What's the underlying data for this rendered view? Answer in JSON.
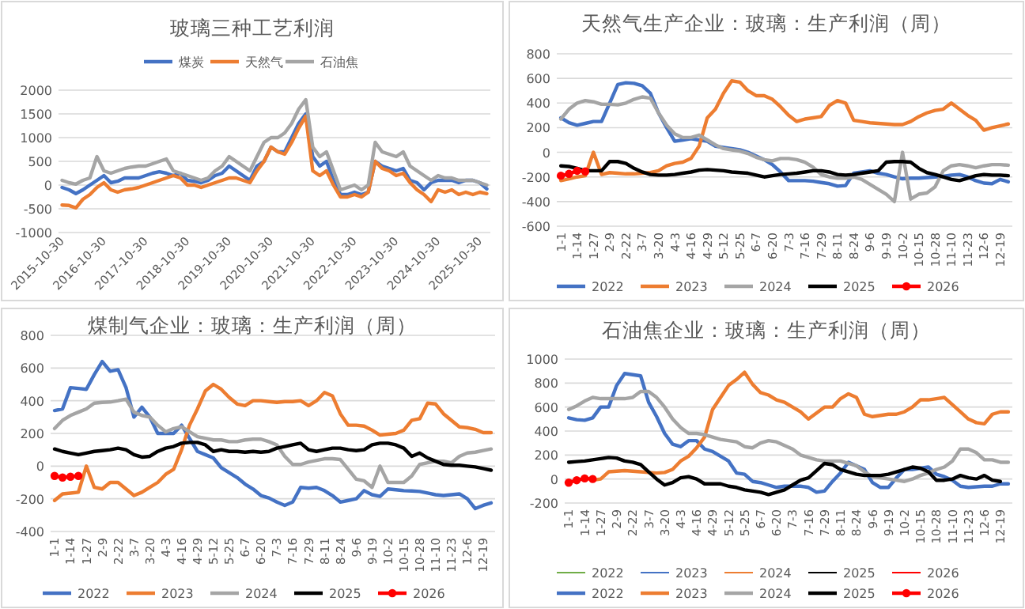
{
  "chart_data": [
    {
      "type": "line",
      "title": "玻璃三种工艺利润",
      "legend": "top",
      "grid": "y",
      "x": [
        "2015-11",
        "2016-01",
        "2016-03",
        "2016-05",
        "2016-07",
        "2016-09",
        "2016-11",
        "2017-01",
        "2017-03",
        "2017-05",
        "2017-07",
        "2017-09",
        "2017-11",
        "2018-01",
        "2018-03",
        "2018-05",
        "2018-07",
        "2018-09",
        "2018-11",
        "2019-01",
        "2019-03",
        "2019-05",
        "2019-07",
        "2019-09",
        "2019-11",
        "2020-01",
        "2020-03",
        "2020-05",
        "2020-07",
        "2020-09",
        "2020-11",
        "2021-01",
        "2021-03",
        "2021-05",
        "2021-07",
        "2021-09",
        "2021-11",
        "2022-01",
        "2022-03",
        "2022-05",
        "2022-07",
        "2022-09",
        "2022-11",
        "2023-01",
        "2023-03",
        "2023-05",
        "2023-07",
        "2023-09",
        "2023-11",
        "2024-01",
        "2024-03",
        "2024-05",
        "2024-07",
        "2024-09",
        "2024-11",
        "2025-01",
        "2025-03",
        "2025-05",
        "2025-07",
        "2025-09",
        "2025-11",
        "2026-01"
      ],
      "xlim": [
        "2015-10-01",
        "2026-02-01"
      ],
      "xticks": [
        "2015-10-30",
        "2016-10-30",
        "2017-10-30",
        "2018-10-30",
        "2019-10-30",
        "2020-10-30",
        "2021-10-30",
        "2022-10-30",
        "2023-10-30",
        "2024-10-30",
        "2025-10-30"
      ],
      "ylim": [
        -1000,
        2000
      ],
      "yticks": [
        -1000,
        -500,
        0,
        500,
        1000,
        1500,
        2000
      ],
      "series": [
        {
          "name": "煤炭",
          "color": "#4472c4",
          "values": [
            -50,
            -100,
            -180,
            -100,
            0,
            100,
            200,
            50,
            80,
            150,
            150,
            150,
            200,
            250,
            280,
            250,
            200,
            250,
            100,
            80,
            50,
            100,
            200,
            250,
            400,
            300,
            200,
            100,
            400,
            500,
            800,
            700,
            700,
            1000,
            1300,
            1500,
            600,
            400,
            500,
            100,
            -200,
            -200,
            -150,
            -200,
            -150,
            500,
            400,
            350,
            300,
            350,
            100,
            50,
            -100,
            50,
            100,
            100,
            100,
            50,
            100,
            100,
            50,
            -80
          ]
        },
        {
          "name": "天然气",
          "color": "#ed7d31",
          "values": [
            -420,
            -430,
            -480,
            -300,
            -200,
            -50,
            50,
            -100,
            -150,
            -100,
            -80,
            -50,
            0,
            50,
            100,
            150,
            200,
            150,
            0,
            0,
            -50,
            0,
            50,
            100,
            150,
            150,
            100,
            50,
            300,
            500,
            800,
            700,
            650,
            900,
            1200,
            1450,
            300,
            200,
            300,
            0,
            -250,
            -250,
            -200,
            -250,
            -150,
            500,
            350,
            300,
            200,
            250,
            50,
            -100,
            -200,
            -350,
            -100,
            -150,
            -100,
            -200,
            -150,
            -200,
            -150,
            -180
          ]
        },
        {
          "name": "石油焦",
          "color": "#a5a5a5",
          "values": [
            100,
            50,
            20,
            100,
            150,
            600,
            300,
            250,
            300,
            350,
            380,
            400,
            400,
            450,
            500,
            550,
            300,
            250,
            200,
            150,
            100,
            150,
            300,
            400,
            600,
            500,
            400,
            300,
            600,
            900,
            1000,
            1000,
            1100,
            1300,
            1600,
            1800,
            800,
            600,
            700,
            300,
            -100,
            -50,
            0,
            -100,
            0,
            900,
            700,
            650,
            600,
            700,
            400,
            300,
            200,
            100,
            200,
            150,
            150,
            100,
            100,
            100,
            50,
            0
          ]
        }
      ]
    },
    {
      "type": "line",
      "title": "天然气生产企业：玻璃：生产利润（周）",
      "legend": "bottom",
      "grid": "y",
      "categories": [
        "1-1",
        null,
        "1-14",
        null,
        "1-27",
        null,
        "2-9",
        null,
        "2-22",
        null,
        "3-7",
        null,
        "3-20",
        null,
        "4-3",
        null,
        "4-16",
        null,
        "4-29",
        null,
        "5-12",
        null,
        "5-25",
        null,
        "6-7",
        null,
        "6-20",
        null,
        "7-3",
        null,
        "7-16",
        null,
        "7-29",
        null,
        "8-11",
        null,
        "8-24",
        null,
        "9-6",
        null,
        "9-19",
        null,
        "10-2",
        null,
        "10-15",
        null,
        "10-28",
        null,
        "11-10",
        null,
        "11-23",
        null,
        "12-6",
        null,
        "12-19",
        null
      ],
      "ylim": [
        -600,
        800
      ],
      "yticks": [
        -600,
        -400,
        -200,
        0,
        200,
        400,
        600,
        800
      ],
      "series": [
        {
          "name": "2022",
          "color": "#4472c4",
          "values": [
            280,
            240,
            220,
            235,
            250,
            250,
            400,
            550,
            565,
            560,
            540,
            480,
            320,
            200,
            90,
            100,
            110,
            100,
            90,
            50,
            40,
            30,
            20,
            0,
            -30,
            -60,
            -100,
            -160,
            -230,
            -230,
            -230,
            -235,
            -245,
            -255,
            -275,
            -270,
            -170,
            -160,
            -150,
            -170,
            -180,
            -200,
            -215,
            -210,
            -210,
            -205,
            -200,
            -195,
            -185,
            -180,
            -200,
            -230,
            -250,
            -255,
            -220,
            -240
          ]
        },
        {
          "name": "2023",
          "color": "#ed7d31",
          "values": [
            -230,
            -215,
            -200,
            -190,
            0,
            -180,
            -165,
            -170,
            -175,
            -175,
            -170,
            -165,
            -150,
            -110,
            -90,
            -80,
            -50,
            50,
            280,
            350,
            480,
            580,
            570,
            500,
            460,
            460,
            430,
            370,
            300,
            250,
            270,
            280,
            290,
            380,
            420,
            400,
            260,
            250,
            240,
            235,
            230,
            225,
            225,
            250,
            290,
            320,
            340,
            350,
            400,
            350,
            300,
            260,
            180,
            200,
            215,
            230
          ]
        },
        {
          "name": "2024",
          "color": "#a5a5a5",
          "values": [
            270,
            350,
            400,
            420,
            410,
            390,
            390,
            385,
            400,
            430,
            450,
            440,
            320,
            220,
            150,
            120,
            120,
            140,
            100,
            60,
            30,
            20,
            10,
            -10,
            -40,
            -60,
            -70,
            -50,
            -50,
            -60,
            -80,
            -120,
            -180,
            -200,
            -210,
            -210,
            -200,
            -220,
            -260,
            -300,
            -340,
            -400,
            0,
            -380,
            -340,
            -330,
            -280,
            -150,
            -110,
            -100,
            -110,
            -125,
            -110,
            -100,
            -100,
            -105
          ]
        },
        {
          "name": "2025",
          "color": "#000000",
          "values": [
            -110,
            -115,
            -130,
            -150,
            -150,
            -150,
            -75,
            -75,
            -90,
            -130,
            -160,
            -180,
            -185,
            -185,
            -180,
            -170,
            -160,
            -145,
            -140,
            -145,
            -150,
            -160,
            -165,
            -170,
            -185,
            -200,
            -190,
            -180,
            -175,
            -170,
            -160,
            -150,
            -150,
            -160,
            -180,
            -185,
            -180,
            -170,
            -160,
            -150,
            -80,
            -75,
            -75,
            -80,
            -130,
            -165,
            -180,
            -200,
            -220,
            -230,
            -210,
            -190,
            -180,
            -185,
            -185,
            -190
          ]
        },
        {
          "name": "2026",
          "color": "#ff0000",
          "marker": "circle",
          "values": [
            -190,
            -175,
            -150,
            -155,
            null,
            null,
            null,
            null,
            null,
            null,
            null,
            null,
            null,
            null,
            null,
            null,
            null,
            null,
            null,
            null,
            null,
            null,
            null,
            null,
            null,
            null,
            null,
            null,
            null,
            null,
            null,
            null,
            null,
            null,
            null,
            null,
            null,
            null,
            null,
            null,
            null,
            null,
            null,
            null,
            null,
            null,
            null,
            null,
            null,
            null,
            null,
            null,
            null,
            null,
            null,
            null
          ]
        }
      ]
    },
    {
      "type": "line",
      "title": "煤制气企业：玻璃：生产利润（周）",
      "legend": "bottom",
      "grid": "y",
      "categories": [
        "1-1",
        null,
        "1-14",
        null,
        "1-27",
        null,
        "2-9",
        null,
        "2-22",
        null,
        "3-7",
        null,
        "3-20",
        null,
        "4-3",
        null,
        "4-16",
        null,
        "4-29",
        null,
        "5-12",
        null,
        "5-25",
        null,
        "6-7",
        null,
        "6-20",
        null,
        "7-3",
        null,
        "7-16",
        null,
        "7-29",
        null,
        "8-11",
        null,
        "8-24",
        null,
        "9-6",
        null,
        "9-19",
        null,
        "10-2",
        null,
        "10-15",
        null,
        "10-28",
        null,
        "11-10",
        null,
        "11-23",
        null,
        "12-6",
        null,
        "12-19",
        null
      ],
      "ylim": [
        -400,
        800
      ],
      "yticks": [
        -400,
        -200,
        0,
        200,
        400,
        600,
        800
      ],
      "series": [
        {
          "name": "2022",
          "color": "#4472c4",
          "values": [
            340,
            350,
            480,
            475,
            470,
            560,
            640,
            580,
            590,
            480,
            300,
            360,
            300,
            200,
            200,
            200,
            250,
            170,
            90,
            70,
            50,
            -10,
            -40,
            -70,
            -110,
            -140,
            -180,
            -195,
            -220,
            -240,
            -220,
            -130,
            -135,
            -130,
            -150,
            -180,
            -220,
            -210,
            -200,
            -150,
            -175,
            -185,
            -140,
            -145,
            -150,
            -152,
            -155,
            -165,
            -175,
            -180,
            -175,
            -170,
            -200,
            -260,
            -240,
            -225
          ]
        },
        {
          "name": "2023",
          "color": "#ed7d31",
          "values": [
            -210,
            -170,
            -165,
            -160,
            0,
            -130,
            -140,
            -100,
            -100,
            -140,
            -180,
            -160,
            -130,
            -100,
            -50,
            -20,
            100,
            250,
            350,
            460,
            500,
            470,
            420,
            380,
            370,
            400,
            400,
            395,
            390,
            395,
            395,
            400,
            370,
            400,
            450,
            430,
            320,
            250,
            250,
            245,
            220,
            190,
            195,
            200,
            220,
            280,
            290,
            385,
            380,
            320,
            280,
            240,
            235,
            225,
            205,
            205
          ]
        },
        {
          "name": "2024",
          "color": "#a5a5a5",
          "values": [
            230,
            280,
            310,
            330,
            350,
            385,
            390,
            392,
            400,
            410,
            330,
            310,
            300,
            250,
            210,
            230,
            240,
            210,
            180,
            170,
            160,
            160,
            150,
            150,
            160,
            165,
            165,
            150,
            130,
            60,
            10,
            10,
            25,
            35,
            45,
            45,
            40,
            -20,
            -80,
            -90,
            -130,
            0,
            -100,
            -100,
            -100,
            -60,
            10,
            20,
            30,
            30,
            20,
            60,
            80,
            85,
            95,
            105
          ]
        },
        {
          "name": "2025",
          "color": "#000000",
          "values": [
            105,
            90,
            80,
            70,
            80,
            90,
            95,
            100,
            110,
            100,
            70,
            55,
            60,
            90,
            110,
            120,
            140,
            145,
            145,
            130,
            90,
            100,
            90,
            90,
            85,
            90,
            85,
            90,
            110,
            120,
            130,
            140,
            100,
            90,
            100,
            110,
            110,
            100,
            95,
            100,
            130,
            140,
            140,
            130,
            110,
            60,
            80,
            50,
            30,
            10,
            5,
            5,
            0,
            -5,
            -15,
            -25
          ]
        },
        {
          "name": "2026",
          "color": "#ff0000",
          "marker": "circle",
          "values": [
            -60,
            -70,
            -65,
            -60,
            null,
            null,
            null,
            null,
            null,
            null,
            null,
            null,
            null,
            null,
            null,
            null,
            null,
            null,
            null,
            null,
            null,
            null,
            null,
            null,
            null,
            null,
            null,
            null,
            null,
            null,
            null,
            null,
            null,
            null,
            null,
            null,
            null,
            null,
            null,
            null,
            null,
            null,
            null,
            null,
            null,
            null,
            null,
            null,
            null,
            null,
            null,
            null,
            null,
            null,
            null,
            null
          ]
        }
      ]
    },
    {
      "type": "line",
      "title": "石油焦企业：玻璃：生产利润（周）",
      "legend": "bottom",
      "grid": "y",
      "categories": [
        "1-1",
        null,
        "1-14",
        null,
        "1-27",
        null,
        "2-9",
        null,
        "2-22",
        null,
        "3-7",
        null,
        "3-20",
        null,
        "4-3",
        null,
        "4-16",
        null,
        "4-29",
        null,
        "5-12",
        null,
        "5-25",
        null,
        "6-7",
        null,
        "6-20",
        null,
        "7-3",
        null,
        "7-16",
        null,
        "7-29",
        null,
        "8-11",
        null,
        "8-24",
        null,
        "9-6",
        null,
        "9-19",
        null,
        "10-2",
        null,
        "10-15",
        null,
        "10-28",
        null,
        "11-10",
        null,
        "11-23",
        null,
        "12-6",
        null,
        "12-19",
        null
      ],
      "ylim": [
        -200,
        1000
      ],
      "yticks": [
        -200,
        0,
        200,
        400,
        600,
        800,
        1000
      ],
      "series": [
        {
          "name": "2022",
          "color": "#70ad47",
          "values": [
            null,
            null,
            null,
            null,
            null,
            null,
            null,
            null,
            null,
            null,
            null,
            null,
            null,
            null,
            null,
            null,
            null,
            null,
            null,
            null,
            null,
            null,
            null,
            null,
            null,
            null,
            null,
            null,
            null,
            null,
            null,
            null,
            null,
            null,
            null,
            null,
            null,
            null,
            null,
            null,
            null,
            null,
            null,
            null,
            null,
            null,
            null,
            null,
            null,
            null,
            null,
            null,
            null,
            null,
            null,
            null
          ]
        },
        {
          "name": "2023",
          "color": "#4472c4",
          "values": [
            null,
            null,
            null,
            null,
            null,
            null,
            null,
            null,
            null,
            null,
            null,
            null,
            null,
            null,
            null,
            null,
            null,
            null,
            null,
            null,
            null,
            null,
            null,
            null,
            null,
            null,
            null,
            null,
            null,
            null,
            null,
            null,
            null,
            null,
            null,
            null,
            null,
            null,
            null,
            null,
            null,
            null,
            null,
            null,
            null,
            null,
            null,
            null,
            null,
            null,
            null,
            null,
            null,
            null,
            null,
            null
          ]
        },
        {
          "name": "2024",
          "color": "#ed7d31",
          "values": [
            null,
            null,
            null,
            null,
            null,
            null,
            null,
            null,
            null,
            null,
            null,
            null,
            null,
            null,
            null,
            null,
            null,
            null,
            null,
            null,
            null,
            null,
            null,
            null,
            null,
            null,
            null,
            null,
            null,
            null,
            null,
            null,
            null,
            null,
            null,
            null,
            null,
            null,
            null,
            null,
            null,
            null,
            null,
            null,
            null,
            null,
            null,
            null,
            null,
            null,
            null,
            null,
            null,
            null,
            null,
            null
          ]
        },
        {
          "name": "2025",
          "color": "#000000",
          "values": [
            null,
            null,
            null,
            null,
            null,
            null,
            null,
            null,
            null,
            null,
            null,
            null,
            null,
            null,
            null,
            null,
            null,
            null,
            null,
            null,
            null,
            null,
            null,
            null,
            null,
            null,
            null,
            null,
            null,
            null,
            null,
            null,
            null,
            null,
            null,
            null,
            null,
            null,
            null,
            null,
            null,
            null,
            null,
            null,
            null,
            null,
            null,
            null,
            null,
            null,
            null,
            null,
            null,
            null,
            null,
            null
          ]
        },
        {
          "name": "2026",
          "color": "#ff0000",
          "values": [
            null,
            null,
            null,
            null,
            null,
            null,
            null,
            null,
            null,
            null,
            null,
            null,
            null,
            null,
            null,
            null,
            null,
            null,
            null,
            null,
            null,
            null,
            null,
            null,
            null,
            null,
            null,
            null,
            null,
            null,
            null,
            null,
            null,
            null,
            null,
            null,
            null,
            null,
            null,
            null,
            null,
            null,
            null,
            null,
            null,
            null,
            null,
            null,
            null,
            null,
            null,
            null,
            null,
            null,
            null,
            null
          ]
        },
        {
          "name": "2022",
          "color": "#4472c4",
          "values": [
            510,
            495,
            490,
            510,
            600,
            600,
            780,
            880,
            870,
            860,
            640,
            520,
            380,
            290,
            270,
            320,
            320,
            250,
            230,
            190,
            150,
            50,
            40,
            -20,
            -30,
            -50,
            -70,
            -60,
            -60,
            -60,
            -70,
            -110,
            -100,
            -20,
            50,
            140,
            110,
            80,
            -30,
            -70,
            -70,
            10,
            80,
            80,
            90,
            100,
            40,
            20,
            -10,
            -60,
            -70,
            -65,
            -60,
            -60,
            -40,
            -40
          ]
        },
        {
          "name": "2023",
          "color": "#ed7d31",
          "values": [
            null,
            null,
            null,
            -10,
            0,
            60,
            65,
            70,
            65,
            60,
            55,
            50,
            55,
            80,
            150,
            190,
            260,
            350,
            580,
            680,
            780,
            830,
            890,
            790,
            720,
            700,
            660,
            640,
            600,
            560,
            500,
            550,
            600,
            600,
            670,
            710,
            680,
            540,
            520,
            530,
            540,
            540,
            560,
            600,
            660,
            660,
            670,
            680,
            620,
            560,
            500,
            470,
            460,
            540,
            560,
            560
          ]
        },
        {
          "name": "2024",
          "color": "#a5a5a5",
          "values": [
            580,
            610,
            650,
            680,
            670,
            670,
            670,
            670,
            680,
            730,
            730,
            680,
            600,
            500,
            430,
            380,
            380,
            370,
            350,
            330,
            320,
            310,
            270,
            260,
            300,
            320,
            310,
            280,
            250,
            200,
            180,
            160,
            150,
            150,
            150,
            130,
            110,
            60,
            20,
            10,
            0,
            -10,
            -20,
            0,
            30,
            50,
            80,
            100,
            150,
            250,
            250,
            220,
            160,
            160,
            140,
            140
          ]
        },
        {
          "name": "2025",
          "color": "#000000",
          "values": [
            140,
            145,
            150,
            160,
            170,
            180,
            175,
            150,
            140,
            120,
            60,
            0,
            -50,
            -30,
            10,
            20,
            0,
            -40,
            -40,
            -40,
            -60,
            -70,
            -90,
            -100,
            -110,
            -130,
            -110,
            -90,
            -50,
            -10,
            10,
            70,
            130,
            120,
            80,
            60,
            40,
            30,
            30,
            30,
            40,
            60,
            80,
            100,
            90,
            60,
            -10,
            -10,
            0,
            30,
            10,
            0,
            30,
            -10,
            -20,
            null
          ]
        },
        {
          "name": "2026",
          "color": "#ff0000",
          "marker": "circle",
          "values": [
            -30,
            -10,
            5,
            0,
            null,
            null,
            null,
            null,
            null,
            null,
            null,
            null,
            null,
            null,
            null,
            null,
            null,
            null,
            null,
            null,
            null,
            null,
            null,
            null,
            null,
            null,
            null,
            null,
            null,
            null,
            null,
            null,
            null,
            null,
            null,
            null,
            null,
            null,
            null,
            null,
            null,
            null,
            null,
            null,
            null,
            null,
            null,
            null,
            null,
            null,
            null,
            null,
            null,
            null,
            null,
            null
          ]
        }
      ]
    }
  ]
}
